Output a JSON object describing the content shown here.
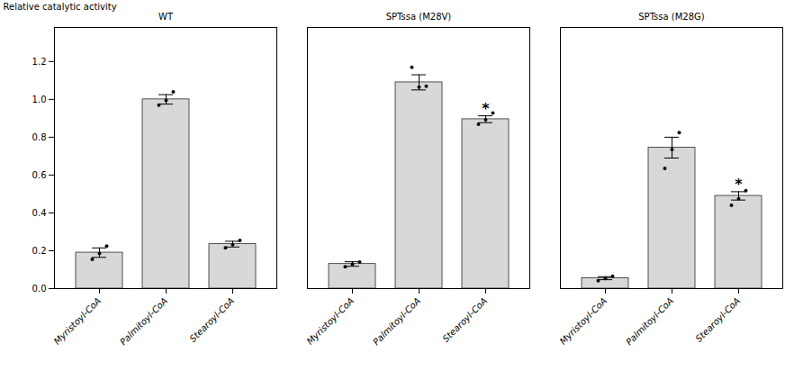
{
  "chart_data": {
    "type": "bar",
    "categories": [
      "Palmitoyl-CoA",
      "Myristoyl-CoA",
      "Stearoyl-CoA",
      "Palmitoyl-CoA",
      "Myristoyl-CoA",
      "Stearoyl-CoA",
      "Palmitoyl-CoA",
      "Myristoyl-CoA",
      "Stearoyl-CoA"
    ],
    "values": [
      1.0,
      0.19,
      0.235,
      1.09,
      0.13,
      0.895,
      0.745,
      0.055,
      0.49
    ],
    "errors": [
      0.025,
      0.025,
      0.015,
      0.04,
      0.012,
      0.018,
      0.055,
      0.008,
      0.022
    ],
    "color": "#d8d8d8",
    "edge_color": "#2a2a2a",
    "points": {
      "color": "#0a0a0a",
      "values": [
        [
          0.97,
          0.995,
          1.04
        ],
        [
          0.155,
          0.185,
          0.225
        ],
        [
          0.215,
          0.232,
          0.255
        ],
        [
          1.17,
          1.065,
          1.07
        ],
        [
          0.115,
          0.128,
          0.14
        ],
        [
          0.868,
          0.892,
          0.928
        ],
        [
          0.635,
          0.735,
          0.825
        ],
        [
          0.042,
          0.053,
          0.065
        ],
        [
          0.44,
          0.475,
          0.518
        ]
      ]
    },
    "groups": [
      "WT",
      "SPTssa (M28V)",
      "SPTssa (M28G)"
    ],
    "annotations": [
      {
        "text": "*",
        "bar": 5
      },
      {
        "text": "*",
        "bar": 8
      }
    ],
    "ylabel": "Relative catalytic activity",
    "ylim": [
      0,
      1.38
    ],
    "yticks": [
      {
        "value": 0.0,
        "label": "0.0"
      },
      {
        "value": 0.2,
        "label": "0.2"
      },
      {
        "value": 0.4,
        "label": "0.4"
      },
      {
        "value": 0.6,
        "label": "0.6"
      },
      {
        "value": 0.8,
        "label": "0.8"
      },
      {
        "value": 1.0,
        "label": "1.0"
      },
      {
        "value": 1.2,
        "label": "1.2"
      }
    ],
    "grid": false
  }
}
